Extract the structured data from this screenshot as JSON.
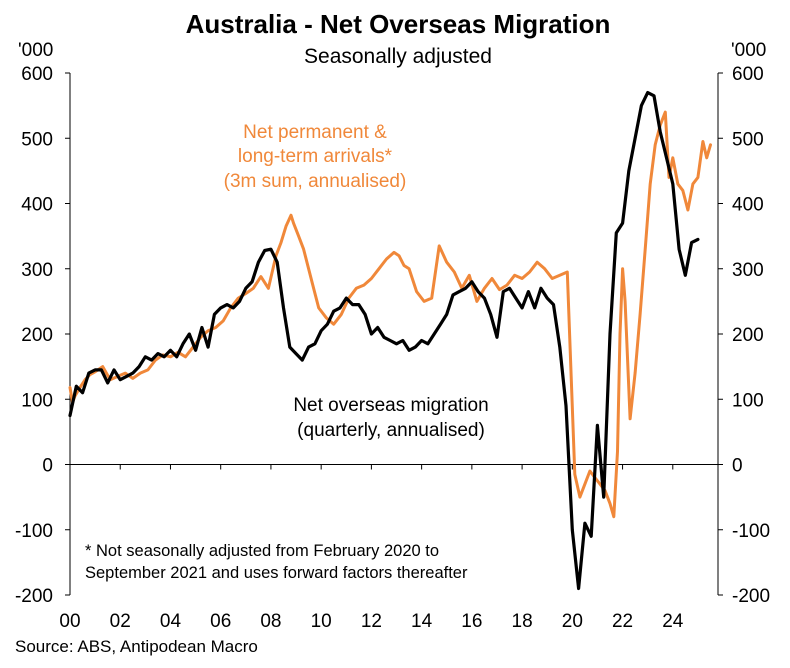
{
  "chart_data": {
    "type": "line",
    "title": "Australia - Net Overseas Migration",
    "subtitle": "Seasonally adjusted",
    "unit_left": "'000",
    "unit_right": "'000",
    "ylim": [
      -200,
      600
    ],
    "y_ticks": [
      -200,
      -100,
      0,
      100,
      200,
      300,
      400,
      500,
      600
    ],
    "x_ticks": [
      "00",
      "02",
      "04",
      "06",
      "08",
      "10",
      "12",
      "14",
      "16",
      "18",
      "20",
      "22",
      "24"
    ],
    "xlim": [
      2000,
      2025.8
    ],
    "annotation_orange": [
      "Net permanent &",
      "long-term arrivals*",
      "(3m sum, annualised)"
    ],
    "annotation_black": [
      "Net overseas migration",
      "(quarterly, annualised)"
    ],
    "footnote": [
      "* Not seasonally adjusted from February 2020 to",
      "September 2021 and uses forward factors thereafter"
    ],
    "source": "Source: ABS, Antipodean Macro",
    "colors": {
      "orange": "#F0883A",
      "black": "#000000"
    },
    "series": [
      {
        "name": "Net permanent & long-term arrivals* (3m sum, annualised)",
        "color": "#F0883A",
        "x": [
          2000.0,
          2000.1,
          2000.2,
          2000.4,
          2000.6,
          2000.8,
          2001.0,
          2001.3,
          2001.6,
          2001.9,
          2002.2,
          2002.5,
          2002.8,
          2003.1,
          2003.4,
          2003.7,
          2004.0,
          2004.3,
          2004.6,
          2004.9,
          2005.2,
          2005.5,
          2005.8,
          2006.1,
          2006.4,
          2006.7,
          2007.0,
          2007.3,
          2007.6,
          2007.9,
          2008.2,
          2008.4,
          2008.6,
          2008.8,
          2008.9,
          2009.1,
          2009.3,
          2009.5,
          2009.7,
          2009.9,
          2010.2,
          2010.5,
          2010.8,
          2011.1,
          2011.4,
          2011.7,
          2012.0,
          2012.3,
          2012.6,
          2012.9,
          2013.1,
          2013.3,
          2013.5,
          2013.8,
          2014.1,
          2014.4,
          2014.7,
          2015.0,
          2015.3,
          2015.6,
          2015.9,
          2016.2,
          2016.5,
          2016.8,
          2017.1,
          2017.4,
          2017.7,
          2018.0,
          2018.3,
          2018.6,
          2018.9,
          2019.2,
          2019.5,
          2019.8,
          2020.1,
          2020.3,
          2020.5,
          2020.7,
          2020.9,
          2021.1,
          2021.3,
          2021.5,
          2021.65,
          2021.8,
          2021.9,
          2022.0,
          2022.1,
          2022.3,
          2022.5,
          2022.7,
          2022.9,
          2023.1,
          2023.3,
          2023.5,
          2023.7,
          2023.85,
          2024.0,
          2024.2,
          2024.4,
          2024.6,
          2024.8,
          2025.0,
          2025.2,
          2025.35,
          2025.5
        ],
        "values": [
          118,
          95,
          105,
          118,
          130,
          138,
          142,
          150,
          130,
          135,
          140,
          132,
          140,
          145,
          160,
          168,
          165,
          172,
          165,
          180,
          195,
          205,
          210,
          220,
          240,
          255,
          262,
          270,
          288,
          270,
          320,
          340,
          365,
          382,
          370,
          350,
          330,
          300,
          270,
          240,
          225,
          215,
          230,
          255,
          270,
          275,
          285,
          300,
          315,
          325,
          320,
          305,
          300,
          265,
          250,
          255,
          335,
          310,
          295,
          270,
          290,
          250,
          270,
          285,
          268,
          275,
          290,
          285,
          295,
          310,
          300,
          285,
          290,
          295,
          -15,
          -50,
          -30,
          -10,
          -20,
          -30,
          -40,
          -60,
          -80,
          20,
          200,
          300,
          250,
          70,
          140,
          230,
          330,
          430,
          490,
          520,
          540,
          440,
          470,
          430,
          420,
          390,
          430,
          440,
          495,
          470,
          490
        ]
      },
      {
        "name": "Net overseas migration (quarterly, annualised)",
        "color": "#000000",
        "x": [
          2000.0,
          2000.25,
          2000.5,
          2000.75,
          2001.0,
          2001.25,
          2001.5,
          2001.75,
          2002.0,
          2002.25,
          2002.5,
          2002.75,
          2003.0,
          2003.25,
          2003.5,
          2003.75,
          2004.0,
          2004.25,
          2004.5,
          2004.75,
          2005.0,
          2005.25,
          2005.5,
          2005.75,
          2006.0,
          2006.25,
          2006.5,
          2006.75,
          2007.0,
          2007.25,
          2007.5,
          2007.75,
          2008.0,
          2008.25,
          2008.5,
          2008.75,
          2009.0,
          2009.25,
          2009.5,
          2009.75,
          2010.0,
          2010.25,
          2010.5,
          2010.75,
          2011.0,
          2011.25,
          2011.5,
          2011.75,
          2012.0,
          2012.25,
          2012.5,
          2012.75,
          2013.0,
          2013.25,
          2013.5,
          2013.75,
          2014.0,
          2014.25,
          2014.5,
          2014.75,
          2015.0,
          2015.25,
          2015.5,
          2015.75,
          2016.0,
          2016.25,
          2016.5,
          2016.75,
          2017.0,
          2017.25,
          2017.5,
          2017.75,
          2018.0,
          2018.25,
          2018.5,
          2018.75,
          2019.0,
          2019.25,
          2019.5,
          2019.75,
          2020.0,
          2020.25,
          2020.5,
          2020.75,
          2021.0,
          2021.25,
          2021.5,
          2021.75,
          2022.0,
          2022.25,
          2022.5,
          2022.75,
          2023.0,
          2023.25,
          2023.5,
          2023.75,
          2024.0,
          2024.25,
          2024.5,
          2024.75,
          2025.0
        ],
        "values": [
          75,
          120,
          110,
          140,
          145,
          145,
          125,
          145,
          130,
          135,
          140,
          150,
          165,
          160,
          170,
          165,
          175,
          165,
          185,
          200,
          175,
          210,
          180,
          230,
          240,
          245,
          240,
          250,
          270,
          280,
          310,
          328,
          330,
          310,
          240,
          180,
          170,
          160,
          180,
          185,
          205,
          215,
          235,
          240,
          255,
          245,
          245,
          230,
          200,
          210,
          195,
          190,
          185,
          190,
          175,
          180,
          190,
          185,
          200,
          215,
          230,
          260,
          265,
          270,
          280,
          265,
          255,
          230,
          195,
          265,
          270,
          255,
          240,
          265,
          240,
          270,
          255,
          245,
          180,
          90,
          -100,
          -190,
          -90,
          -110,
          60,
          -50,
          200,
          355,
          370,
          450,
          500,
          550,
          570,
          565,
          510,
          470,
          430,
          330,
          290,
          340,
          345
        ]
      }
    ]
  }
}
